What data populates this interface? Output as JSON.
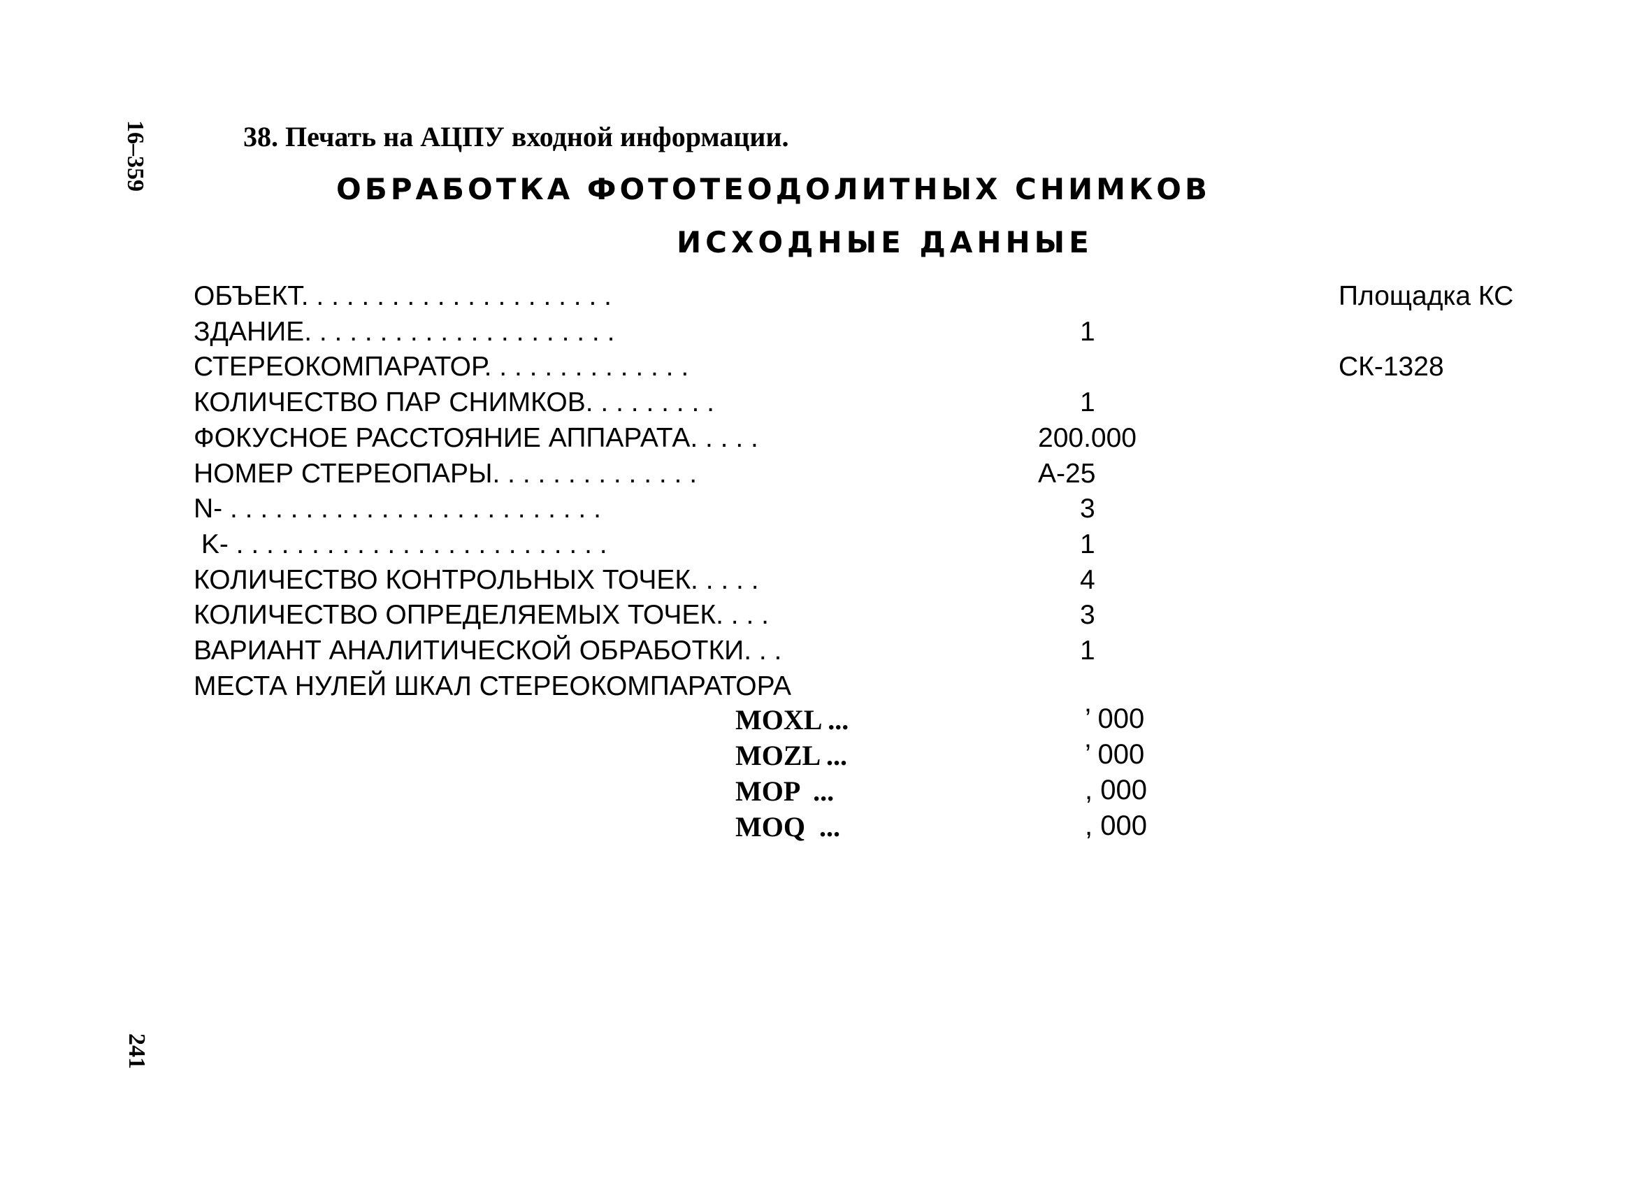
{
  "margin": {
    "code": "16–359",
    "page_number": "241"
  },
  "title": "38. Печать на АЦПУ входной информации.",
  "heading": "ОБРАБОТКА ФОТОТЕОДОЛИТНЫХ СНИМКОВ",
  "subheading": "ИСХОДНЫЕ ДАННЫЕ",
  "rows": [
    {
      "label": "ОБЪЕКТ. . . . . . . . . . . . . . . . . . . . .",
      "value": "",
      "right": "Площадка КС"
    },
    {
      "label": "ЗДАНИЕ. . . . . . . . . . . . . . . . . . . . .",
      "value": "1",
      "right": ""
    },
    {
      "label": "СТЕРЕОКОМПАРАТОР. . . . . . . . . . . . . .",
      "value": "",
      "right": "СК-1328"
    },
    {
      "label": "КОЛИЧЕСТВО ПАР СНИМКОВ. . . . . . . . .",
      "value": "1",
      "right": ""
    },
    {
      "label": "ФОКУСНОЕ РАССТОЯНИЕ АППАРАТА. . . . .",
      "value": "200.000",
      "right": ""
    },
    {
      "label": "НОМЕР СТЕРЕОПАРЫ. . . . . . . . . . . . . .",
      "value": "А-25",
      "right": ""
    },
    {
      "label": "N- . . . . . . . . . . . . . . . . . . . . . . . . .",
      "value": "3",
      "right": ""
    },
    {
      "label": " K- . . . . . . . . . . . . . . . . . . . . . . . . .",
      "value": "1",
      "right": ""
    },
    {
      "label": "КОЛИЧЕСТВО КОНТРОЛЬНЫХ ТОЧЕК. . . . .",
      "value": "4",
      "right": ""
    },
    {
      "label": "КОЛИЧЕСТВО ОПРЕДЕЛЯЕМЫХ ТОЧЕК. . . .",
      "value": "3",
      "right": ""
    },
    {
      "label": "ВАРИАНТ АНАЛИТИЧЕСКОЙ ОБРАБОТКИ. . .",
      "value": "1",
      "right": ""
    },
    {
      "label": "МЕСТА НУЛЕЙ ШКАЛ СТЕРЕОКОМПАРАТОРА",
      "value": "",
      "right": ""
    }
  ],
  "zero_rows": [
    {
      "label": "MOXL ...",
      "value": "’ 000"
    },
    {
      "label": "MOZL ...",
      "value": "’ 000"
    },
    {
      "label": "MOP  ...",
      "value": ", 000"
    },
    {
      "label": "MOQ  ...",
      "value": ", 000"
    }
  ]
}
